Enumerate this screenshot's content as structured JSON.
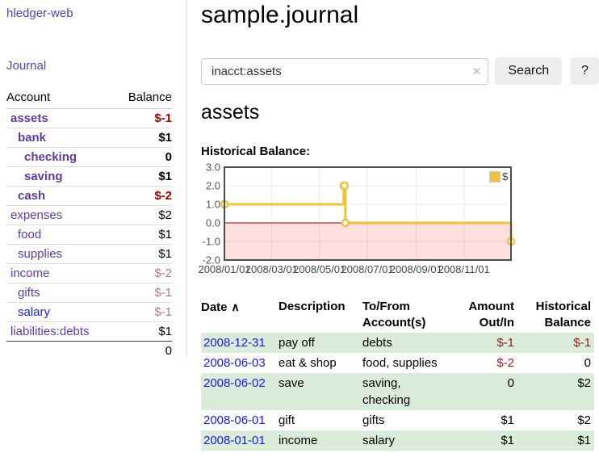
{
  "sidebar": {
    "brand": "hledger-web",
    "journal_link": "Journal",
    "accounts": {
      "col_account": "Account",
      "col_balance": "Balance",
      "rows": [
        {
          "name": "assets",
          "balance": "$-1"
        },
        {
          "name": "bank",
          "balance": "$1"
        },
        {
          "name": "checking",
          "balance": "0"
        },
        {
          "name": "saving",
          "balance": "$1"
        },
        {
          "name": "cash",
          "balance": "$-2"
        },
        {
          "name": "expenses",
          "balance": "$2"
        },
        {
          "name": "food",
          "balance": "$1"
        },
        {
          "name": "supplies",
          "balance": "$1"
        },
        {
          "name": "income",
          "balance": "$-2"
        },
        {
          "name": "gifts",
          "balance": "$-1"
        },
        {
          "name": "salary",
          "balance": "$-1"
        },
        {
          "name": "liabilities:debts",
          "balance": "$1"
        }
      ],
      "total": "0"
    }
  },
  "main": {
    "title": "sample.journal",
    "search": {
      "query": "inacct:assets",
      "clear_icon": "×",
      "search_button": "Search",
      "help_button": "?"
    },
    "heading": "assets",
    "chart_title": "Historical Balance:",
    "register": {
      "headers": {
        "date": "Date",
        "sort_indicator": "∧",
        "description": "Description",
        "accounts": "To/From Account(s)",
        "amount": "Amount Out/In",
        "balance": "Historical Balance"
      },
      "rows": [
        {
          "date": "2008-12-31",
          "description": "pay off",
          "accounts": "debts",
          "amount": "$-1",
          "balance": "$-1"
        },
        {
          "date": "2008-06-03",
          "description": "eat & shop",
          "accounts": "food, supplies",
          "amount": "$-2",
          "balance": "0"
        },
        {
          "date": "2008-06-02",
          "description": "save",
          "accounts": "saving,\nchecking",
          "amount": "0",
          "balance": "$2"
        },
        {
          "date": "2008-06-01",
          "description": "gift",
          "accounts": "gifts",
          "amount": "$1",
          "balance": "$2"
        },
        {
          "date": "2008-01-01",
          "description": "income",
          "accounts": "salary",
          "amount": "$1",
          "balance": "$1"
        }
      ]
    }
  },
  "chart_data": {
    "type": "line",
    "title": "Historical Balance",
    "step": true,
    "legend": [
      {
        "label": "$",
        "color": "#edc240"
      }
    ],
    "x": [
      "2008-01-01",
      "2008-06-01",
      "2008-06-02",
      "2008-06-03",
      "2008-12-31"
    ],
    "values": [
      1,
      2,
      2,
      0,
      -1
    ],
    "xrange": [
      "2008-01-01",
      "2008-12-31"
    ],
    "ylim": [
      -2,
      3
    ],
    "yticks": [
      "3.0",
      "2.0",
      "1.0",
      "0.0",
      "-1.0",
      "-2.0"
    ],
    "xticks": [
      "2008/01/01",
      "2008/03/01",
      "2008/05/01",
      "2008/07/01",
      "2008/09/01",
      "2008/11/01"
    ],
    "xtick_dates": [
      "2008-01-01",
      "2008-03-01",
      "2008-05-01",
      "2008-07-01",
      "2008-09-01",
      "2008-11-01"
    ],
    "grid": true,
    "legend_position": "top-right",
    "colors": {
      "line": "#edc240",
      "marker_fill": "#ffffff",
      "negative_region": "#ffdede",
      "zero_line": "#8b0000",
      "plot_border": "#4d4d4d",
      "tick_text": "#545454"
    }
  },
  "colors": {
    "link_purple": "#5b3d9e",
    "link_blue": "#1a1ae6",
    "negative_strong": "#a40000",
    "negative_muted": "#b87a7a",
    "negative_table": "#8f1f1f",
    "row_stripe_green": "#dbecda",
    "button_bg": "#ededed"
  }
}
